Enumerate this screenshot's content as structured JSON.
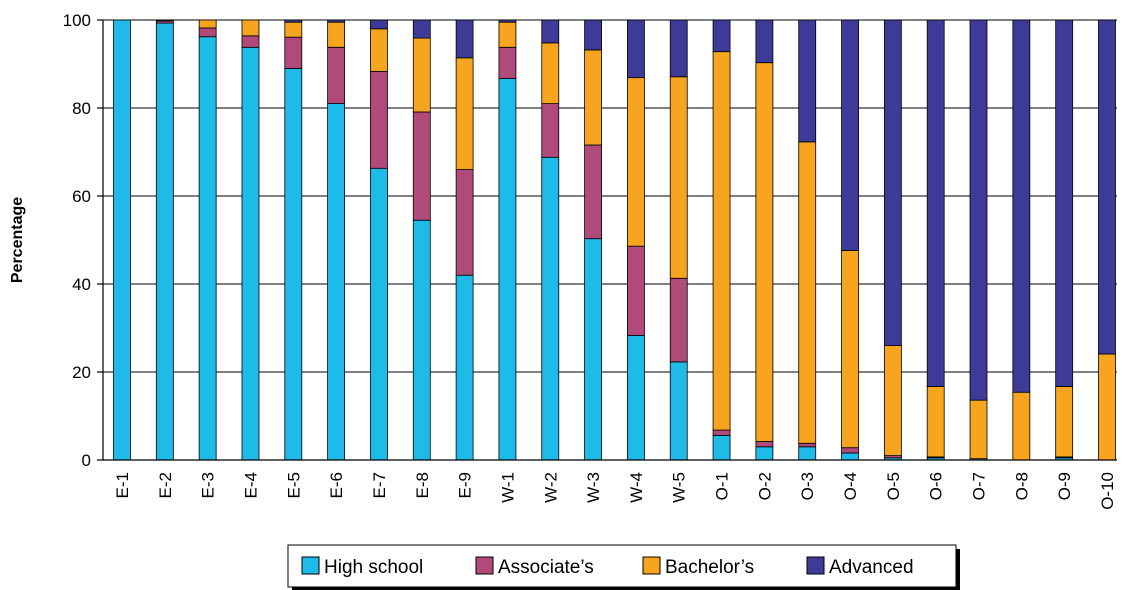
{
  "chart_data": {
    "type": "bar",
    "stacked": true,
    "title": "",
    "xlabel": "",
    "ylabel": "Percentage",
    "ylim": [
      0,
      100
    ],
    "yticks": [
      0,
      20,
      40,
      60,
      80,
      100
    ],
    "grid": "horizontal",
    "legend_position": "bottom",
    "categories": [
      "E-1",
      "E-2",
      "E-3",
      "E-4",
      "E-5",
      "E-6",
      "E-7",
      "E-8",
      "E-9",
      "W-1",
      "W-2",
      "W-3",
      "W-4",
      "W-5",
      "O-1",
      "O-2",
      "O-3",
      "O-4",
      "O-5",
      "O-6",
      "O-7",
      "O-8",
      "O-9",
      "O-10"
    ],
    "series": [
      {
        "name": "High school",
        "color": "#1ebbe9",
        "values": [
          100,
          99.3,
          96.2,
          93.8,
          89,
          81,
          66.3,
          54.5,
          42,
          86.7,
          68.8,
          50.3,
          28.3,
          22.3,
          5.6,
          3,
          3,
          1.6,
          0.5,
          0.5,
          0.3,
          0,
          0.5,
          0
        ]
      },
      {
        "name": "Associate’s",
        "color": "#b04a7b",
        "values": [
          0,
          0.5,
          2,
          2.6,
          7.1,
          12.8,
          22,
          24.6,
          24,
          7.1,
          12.2,
          21.3,
          20.3,
          19,
          1.2,
          1.2,
          0.8,
          1.2,
          0.5,
          0.2,
          0,
          0,
          0.2,
          0
        ]
      },
      {
        "name": "Bachelor’s",
        "color": "#f7a51f",
        "values": [
          0,
          0,
          1.8,
          3.6,
          3.4,
          5.7,
          9.7,
          16.8,
          25.4,
          5.7,
          13.8,
          21.6,
          38.3,
          45.8,
          86,
          86.1,
          68.5,
          44.8,
          25,
          16,
          13.3,
          15.4,
          16,
          24.1
        ]
      },
      {
        "name": "Advanced",
        "color": "#3d3b97",
        "values": [
          0,
          0.2,
          0,
          0,
          0.5,
          0.5,
          2,
          4.1,
          8.6,
          0.5,
          5.2,
          6.8,
          13.1,
          12.9,
          7.2,
          9.7,
          27.7,
          52.4,
          74,
          83.3,
          86.4,
          84.6,
          83.3,
          75.9
        ]
      }
    ]
  }
}
